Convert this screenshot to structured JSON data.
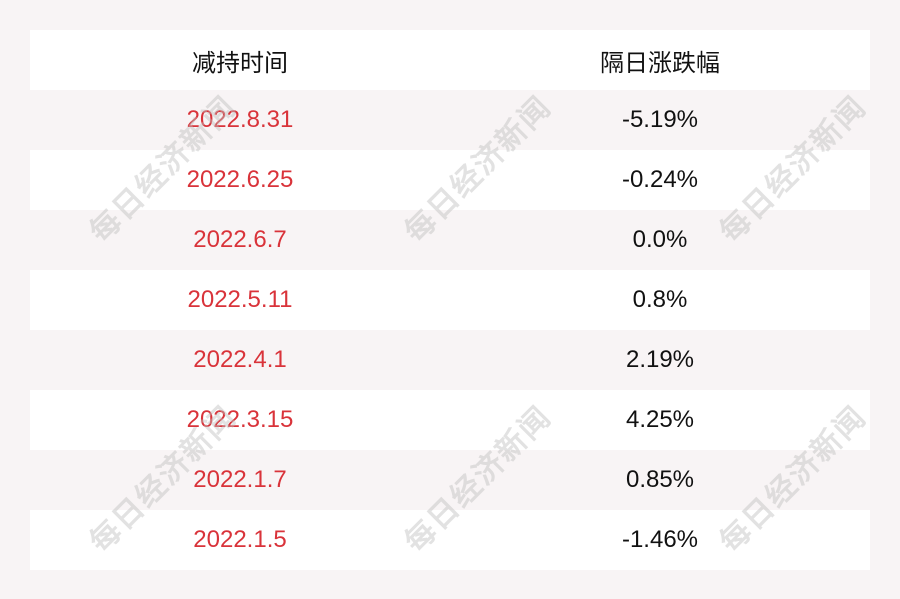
{
  "header": {
    "col1": "减持时间",
    "col2": "隔日涨跌幅"
  },
  "rows": [
    {
      "date": "2022.8.31",
      "change": "-5.19%"
    },
    {
      "date": "2022.6.25",
      "change": "-0.24%"
    },
    {
      "date": "2022.6.7",
      "change": "0.0%"
    },
    {
      "date": "2022.5.11",
      "change": "0.8%"
    },
    {
      "date": "2022.4.1",
      "change": "2.19%"
    },
    {
      "date": "2022.3.15",
      "change": "4.25%"
    },
    {
      "date": "2022.1.7",
      "change": "0.85%"
    },
    {
      "date": "2022.1.5",
      "change": "-1.46%"
    }
  ],
  "watermark": "每日经济新闻",
  "colors": {
    "date_text": "#d9333a",
    "background": "#f8f4f5"
  }
}
